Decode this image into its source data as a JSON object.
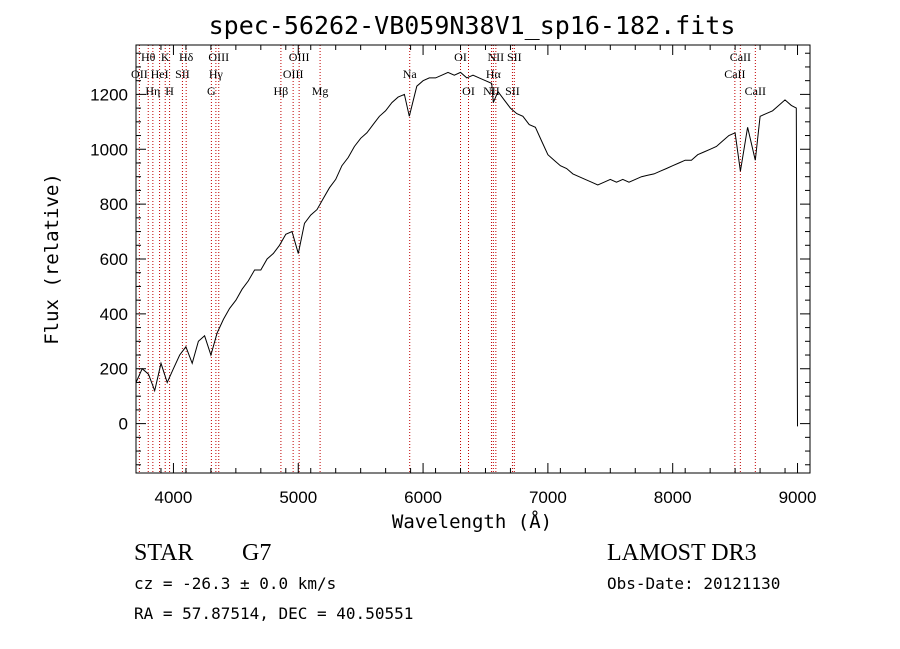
{
  "chart_data": {
    "type": "line",
    "title": "spec-56262-VB059N38V1_sp16-182.fits",
    "xlabel": "Wavelength (Å)",
    "ylabel": "Flux (relative)",
    "xlim": [
      3700,
      9100
    ],
    "ylim": [
      -180,
      1380
    ],
    "x_ticks": [
      4000,
      5000,
      6000,
      7000,
      8000,
      9000
    ],
    "x_tick_labels": [
      "4000",
      "5000",
      "6000",
      "7000",
      "8000",
      "9000"
    ],
    "y_ticks": [
      0,
      200,
      400,
      600,
      800,
      1000,
      1200
    ],
    "y_tick_labels": [
      "0",
      "200",
      "400",
      "600",
      "800",
      "1000",
      "1200"
    ],
    "grid": false,
    "series": [
      {
        "name": "flux",
        "color": "#000000",
        "x": [
          3700,
          3750,
          3800,
          3850,
          3900,
          3950,
          4000,
          4050,
          4100,
          4150,
          4200,
          4250,
          4300,
          4350,
          4400,
          4450,
          4500,
          4550,
          4600,
          4650,
          4700,
          4750,
          4800,
          4850,
          4900,
          4950,
          5000,
          5050,
          5100,
          5150,
          5200,
          5250,
          5300,
          5350,
          5400,
          5450,
          5500,
          5550,
          5600,
          5650,
          5700,
          5750,
          5800,
          5850,
          5890,
          5950,
          6000,
          6050,
          6100,
          6150,
          6200,
          6250,
          6300,
          6350,
          6400,
          6450,
          6500,
          6550,
          6563,
          6600,
          6650,
          6700,
          6750,
          6800,
          6850,
          6900,
          6950,
          7000,
          7050,
          7100,
          7150,
          7200,
          7250,
          7300,
          7350,
          7400,
          7450,
          7500,
          7550,
          7600,
          7650,
          7700,
          7750,
          7800,
          7850,
          7900,
          7950,
          8000,
          8050,
          8100,
          8150,
          8200,
          8250,
          8300,
          8350,
          8400,
          8450,
          8500,
          8542,
          8600,
          8662,
          8700,
          8750,
          8800,
          8850,
          8900,
          8950,
          8990,
          9000
        ],
        "y": [
          150,
          200,
          180,
          120,
          220,
          150,
          200,
          250,
          280,
          220,
          300,
          320,
          250,
          330,
          380,
          420,
          450,
          490,
          520,
          560,
          560,
          600,
          620,
          650,
          690,
          700,
          620,
          730,
          760,
          780,
          820,
          860,
          890,
          940,
          970,
          1010,
          1040,
          1060,
          1090,
          1120,
          1140,
          1170,
          1190,
          1200,
          1120,
          1230,
          1250,
          1260,
          1260,
          1270,
          1280,
          1270,
          1280,
          1260,
          1270,
          1260,
          1250,
          1240,
          1170,
          1210,
          1180,
          1150,
          1130,
          1120,
          1090,
          1080,
          1030,
          980,
          960,
          940,
          930,
          910,
          900,
          890,
          880,
          870,
          880,
          890,
          880,
          890,
          880,
          890,
          900,
          905,
          910,
          920,
          930,
          940,
          950,
          960,
          960,
          980,
          990,
          1000,
          1010,
          1030,
          1050,
          1060,
          920,
          1080,
          960,
          1120,
          1130,
          1140,
          1160,
          1180,
          1160,
          1150,
          -10
        ]
      }
    ],
    "spectral_lines": [
      {
        "label": "Hθ",
        "wavelength": 3798,
        "row": 0
      },
      {
        "label": "OII",
        "wavelength": 3727,
        "row": 1
      },
      {
        "label": "Hη",
        "wavelength": 3835,
        "row": 2
      },
      {
        "label": "HeI",
        "wavelength": 3889,
        "row": 1
      },
      {
        "label": "K",
        "wavelength": 3934,
        "row": 0
      },
      {
        "label": "H",
        "wavelength": 3969,
        "row": 2
      },
      {
        "label": "SII",
        "wavelength": 4072,
        "row": 1
      },
      {
        "label": "Hδ",
        "wavelength": 4102,
        "row": 0
      },
      {
        "label": "OIII",
        "wavelength": 4363,
        "row": 0
      },
      {
        "label": "Hγ",
        "wavelength": 4340,
        "row": 1
      },
      {
        "label": "G",
        "wavelength": 4304,
        "row": 2
      },
      {
        "label": "Hβ",
        "wavelength": 4861,
        "row": 2
      },
      {
        "label": "OIII",
        "wavelength": 5007,
        "row": 0
      },
      {
        "label": "OIII",
        "wavelength": 4959,
        "row": 1
      },
      {
        "label": "Mg",
        "wavelength": 5175,
        "row": 2
      },
      {
        "label": "Na",
        "wavelength": 5893,
        "row": 1
      },
      {
        "label": "OI",
        "wavelength": 6300,
        "row": 0
      },
      {
        "label": "OI",
        "wavelength": 6364,
        "row": 2
      },
      {
        "label": "NII",
        "wavelength": 6548,
        "row": 2
      },
      {
        "label": "Hα",
        "wavelength": 6563,
        "row": 1
      },
      {
        "label": "NII",
        "wavelength": 6583,
        "row": 0
      },
      {
        "label": "SII",
        "wavelength": 6716,
        "row": 2
      },
      {
        "label": "SII",
        "wavelength": 6731,
        "row": 0
      },
      {
        "label": "CaII",
        "wavelength": 8498,
        "row": 1
      },
      {
        "label": "CaII",
        "wavelength": 8542,
        "row": 0
      },
      {
        "label": "CaII",
        "wavelength": 8662,
        "row": 2
      }
    ],
    "line_marker_color": "#c00000"
  },
  "info": {
    "class_label": "STAR",
    "subclass": "G7",
    "survey": "LAMOST DR3",
    "cz_text": "cz = -26.3 ± 0.0 km/s",
    "obs_date": "Obs-Date: 20121130",
    "coords": "RA =  57.87514, DEC =  40.50551"
  }
}
